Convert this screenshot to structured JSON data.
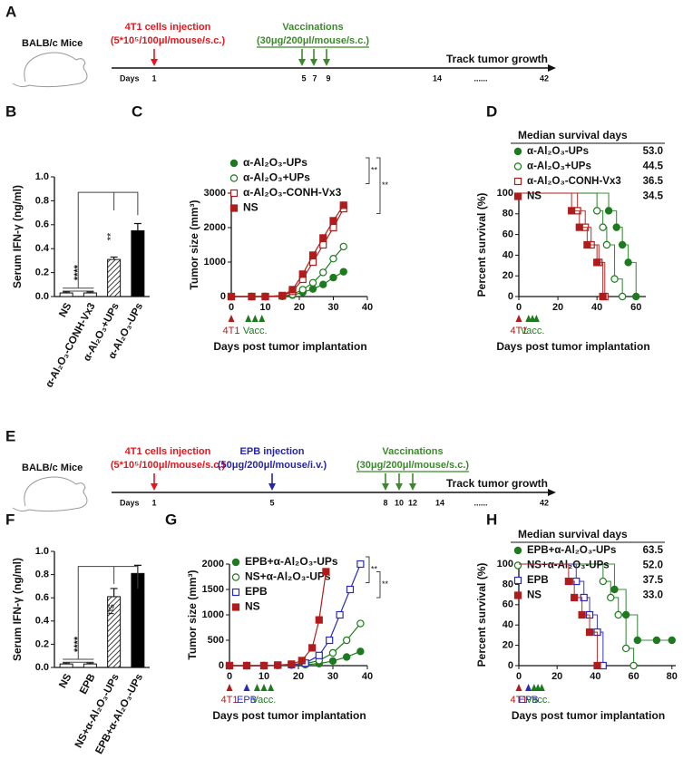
{
  "timelines": [
    {
      "panel": "A",
      "subject": "BALB/c Mice",
      "axis_label": "Days",
      "ticks": [
        1,
        5,
        7,
        9,
        14,
        "......",
        42
      ],
      "end_label": "Track tumor growth",
      "events": [
        {
          "label": "4T1 cells injection",
          "detail": "(5*10⁵/100μl/mouse/s.c.)",
          "color": "#e8141c"
        },
        {
          "label": "Vaccinations",
          "detail": "(30μg/200μl/mouse/s.c.)",
          "color": "#3a8a2a"
        }
      ]
    },
    {
      "panel": "E",
      "subject": "BALB/c Mice",
      "axis_label": "Days",
      "ticks": [
        1,
        5,
        8,
        10,
        12,
        14,
        "......",
        42
      ],
      "end_label": "Track tumor growth",
      "events": [
        {
          "label": "4T1 cells injection",
          "detail": "(5*10⁵/100μl/mouse/s.c.)",
          "color": "#e8141c"
        },
        {
          "label": "EPB injection",
          "detail": "(50μg/200μl/mouse/i.v.)",
          "color": "#2525a8"
        },
        {
          "label": "Vaccinations",
          "detail": "(30μg/200μl/mouse/s.c.)",
          "color": "#3a8a2a"
        }
      ]
    }
  ],
  "chart_data": [
    {
      "panel": "B",
      "type": "bar",
      "ylabel": "Serum IFN-γ (ng/ml)",
      "categories": [
        "NS",
        "α-Al₂O₃-CONH-Vx3",
        "α-Al₂O₃+UPs",
        "α-Al₂O₃-UPs"
      ],
      "values": [
        0.03,
        0.03,
        0.31,
        0.55
      ],
      "errors": [
        0.01,
        0.01,
        0.02,
        0.06
      ],
      "fills": [
        "white",
        "white",
        "hatch",
        "black"
      ],
      "ylim": [
        0,
        1
      ],
      "yticks": [
        {
          "value": 0,
          "label": "0.0"
        },
        0.2,
        0.4,
        0.6,
        0.8,
        {
          "value": 1,
          "label": "1.0"
        }
      ],
      "annotations": [
        "****",
        "**"
      ]
    },
    {
      "panel": "C",
      "type": "line",
      "xlabel": "Days post tumor implantation",
      "ylabel": "Tumor size (mm³)",
      "xlim": [
        0,
        40
      ],
      "xticks": [
        0,
        10,
        20,
        30,
        40
      ],
      "ylim": [
        0,
        3000
      ],
      "yticks": [
        0,
        1000,
        2000,
        3000
      ],
      "series": [
        {
          "name": "α-Al₂O₃-UPs",
          "color": "#1e7a1e",
          "marker": "circle",
          "filled": true,
          "x": [
            0,
            6,
            10,
            15,
            18,
            21,
            24,
            27,
            30,
            33
          ],
          "values": [
            0,
            0,
            0,
            5,
            40,
            120,
            220,
            350,
            550,
            720
          ]
        },
        {
          "name": "α-Al₂O₃+UPs",
          "color": "#1e7a1e",
          "marker": "circle",
          "filled": false,
          "x": [
            0,
            6,
            10,
            15,
            18,
            21,
            24,
            27,
            30,
            33
          ],
          "values": [
            0,
            0,
            0,
            10,
            60,
            200,
            400,
            700,
            1100,
            1450
          ]
        },
        {
          "name": "α-Al₂O₃-CONH-Vx3",
          "color": "#b01c1c",
          "marker": "square",
          "filled": false,
          "x": [
            0,
            6,
            10,
            15,
            18,
            21,
            24,
            27,
            30,
            33
          ],
          "values": [
            0,
            0,
            0,
            20,
            150,
            500,
            1000,
            1500,
            2000,
            2550
          ]
        },
        {
          "name": "NS",
          "color": "#b01c1c",
          "marker": "square",
          "filled": true,
          "x": [
            0,
            6,
            10,
            15,
            18,
            21,
            24,
            27,
            30,
            33
          ],
          "values": [
            0,
            0,
            0,
            30,
            200,
            650,
            1200,
            1700,
            2200,
            2650
          ]
        }
      ],
      "significance": [
        "**",
        "**"
      ],
      "events": [
        {
          "label": "4T1",
          "color": "#b01c1c",
          "days": [
            0
          ]
        },
        {
          "label": "Vacc.",
          "color": "#1e7a1e",
          "days": [
            5,
            7,
            9
          ]
        }
      ]
    },
    {
      "panel": "D",
      "type": "survival",
      "xlabel": "Days post  tumor implantation",
      "ylabel": "Percent survival (%)",
      "legend_title": "Median survival days",
      "xlim": [
        0,
        65
      ],
      "xticks": [
        0,
        20,
        40,
        60
      ],
      "ylim": [
        0,
        100
      ],
      "yticks": [
        0,
        20,
        40,
        60,
        80,
        100
      ],
      "series": [
        {
          "name": "α-Al₂O₃-UPs",
          "color": "#1e7a1e",
          "marker": "circle",
          "filled": true,
          "x": [
            0,
            46,
            50,
            53,
            56,
            60
          ],
          "values": [
            100,
            83,
            67,
            50,
            33,
            0
          ],
          "median": 53,
          "median_label": "53.0"
        },
        {
          "name": "α-Al₂O₃+UPs",
          "color": "#1e7a1e",
          "marker": "circle",
          "filled": false,
          "x": [
            0,
            40,
            43,
            45,
            49,
            53
          ],
          "values": [
            100,
            83,
            67,
            50,
            17,
            0
          ],
          "median": 44.5,
          "median_label": "44.5"
        },
        {
          "name": "α-Al₂O₃-CONH-Vx3",
          "color": "#b01c1c",
          "marker": "square",
          "filled": false,
          "x": [
            0,
            30,
            34,
            37,
            41,
            44
          ],
          "values": [
            100,
            83,
            67,
            50,
            33,
            0
          ],
          "median": 36.5,
          "median_label": "36.5"
        },
        {
          "name": "NS",
          "color": "#b01c1c",
          "marker": "square",
          "filled": true,
          "x": [
            0,
            27,
            31,
            35,
            40,
            43
          ],
          "values": [
            100,
            83,
            67,
            50,
            33,
            0
          ],
          "median": 34.5,
          "median_label": "34.5"
        }
      ],
      "events": [
        {
          "label": "4T1",
          "color": "#b01c1c",
          "days": [
            0
          ]
        },
        {
          "label": "Vacc.",
          "color": "#1e7a1e",
          "days": [
            5,
            7,
            9
          ]
        }
      ]
    },
    {
      "panel": "F",
      "type": "bar",
      "ylabel": "Serum IFN-γ (ng/ml)",
      "categories": [
        "NS",
        "EPB",
        "NS+α-Al₂O₃-UPs",
        "EPB+α-Al₂O₃-UPs"
      ],
      "values": [
        0.03,
        0.03,
        0.61,
        0.81
      ],
      "errors": [
        0.01,
        0.01,
        0.07,
        0.07
      ],
      "fills": [
        "white",
        "white",
        "hatch",
        "black"
      ],
      "ylim": [
        0,
        1
      ],
      "yticks": [
        {
          "value": 0,
          "label": "0.0"
        },
        0.2,
        0.4,
        0.6,
        0.8,
        {
          "value": 1,
          "label": "1.0"
        }
      ],
      "annotations": [
        "****",
        "ns"
      ]
    },
    {
      "panel": "G",
      "type": "line",
      "xlabel": "Days post tumor implantation",
      "ylabel": "Tumor size (mm³)",
      "xlim": [
        0,
        40
      ],
      "xticks": [
        0,
        10,
        20,
        30,
        40
      ],
      "ylim": [
        0,
        2000
      ],
      "yticks": [
        0,
        500,
        1000,
        1500,
        2000
      ],
      "series": [
        {
          "name": "EPB+α-Al₂O₃-UPs",
          "color": "#1e7a1e",
          "marker": "circle",
          "filled": true,
          "x": [
            0,
            5,
            10,
            14,
            18,
            22,
            26,
            30,
            34,
            38
          ],
          "values": [
            0,
            0,
            0,
            5,
            10,
            20,
            40,
            90,
            170,
            280
          ]
        },
        {
          "name": "NS+α-Al₂O₃-UPs",
          "color": "#1e7a1e",
          "marker": "circle",
          "filled": false,
          "x": [
            0,
            5,
            10,
            14,
            18,
            22,
            26,
            30,
            34,
            38
          ],
          "values": [
            0,
            0,
            0,
            5,
            15,
            40,
            100,
            250,
            500,
            830
          ]
        },
        {
          "name": "EPB",
          "color": "#2a2ab8",
          "marker": "square",
          "filled": false,
          "x": [
            0,
            5,
            10,
            14,
            18,
            22,
            26,
            29,
            32,
            35,
            38
          ],
          "values": [
            0,
            0,
            0,
            10,
            20,
            50,
            200,
            500,
            1000,
            1500,
            2000
          ]
        },
        {
          "name": "NS",
          "color": "#b01c1c",
          "marker": "square",
          "filled": true,
          "x": [
            0,
            5,
            10,
            14,
            18,
            21,
            24,
            26,
            28
          ],
          "values": [
            0,
            0,
            0,
            10,
            30,
            100,
            350,
            900,
            1850
          ]
        }
      ],
      "significance": [
        "**",
        "**"
      ],
      "events": [
        {
          "label": "4T1",
          "color": "#b01c1c",
          "days": [
            0
          ]
        },
        {
          "label": "EPB",
          "color": "#2a2ab8",
          "days": [
            5
          ]
        },
        {
          "label": "Vacc.",
          "color": "#1e7a1e",
          "days": [
            8,
            10,
            12
          ]
        }
      ]
    },
    {
      "panel": "H",
      "type": "survival",
      "xlabel": "Days post  tumor implantation",
      "ylabel": "Percent survival (%)",
      "legend_title": "Median survival days",
      "xlim": [
        0,
        82
      ],
      "xticks": [
        0,
        20,
        40,
        60,
        80
      ],
      "ylim": [
        0,
        100
      ],
      "yticks": [
        0,
        20,
        40,
        60,
        80,
        100
      ],
      "series": [
        {
          "name": "EPB+α-Al₂O₃-UPs",
          "color": "#1e7a1e",
          "marker": "circle",
          "filled": true,
          "x": [
            0,
            50,
            56,
            62,
            72,
            80
          ],
          "values": [
            100,
            75,
            50,
            25,
            25,
            25
          ],
          "median": 63.5,
          "median_label": "63.5"
        },
        {
          "name": "NS+α-Al₂O₃-UPs",
          "color": "#1e7a1e",
          "marker": "circle",
          "filled": false,
          "x": [
            0,
            44,
            48,
            52,
            56,
            60
          ],
          "values": [
            100,
            83,
            67,
            50,
            17,
            0
          ],
          "median": 52,
          "median_label": "52.0"
        },
        {
          "name": "EPB",
          "color": "#2a2ab8",
          "marker": "square",
          "filled": false,
          "x": [
            0,
            30,
            34,
            37,
            41,
            44
          ],
          "values": [
            100,
            83,
            67,
            50,
            33,
            0
          ],
          "median": 37.5,
          "median_label": "37.5"
        },
        {
          "name": "NS",
          "color": "#b01c1c",
          "marker": "square",
          "filled": true,
          "x": [
            0,
            26,
            29,
            33,
            37,
            41
          ],
          "values": [
            100,
            83,
            67,
            50,
            33,
            0
          ],
          "median": 33,
          "median_label": "33.0"
        }
      ],
      "events": [
        {
          "label": "4T1",
          "color": "#b01c1c",
          "days": [
            0
          ]
        },
        {
          "label": "EPB",
          "color": "#2a2ab8",
          "days": [
            5
          ]
        },
        {
          "label": "Vacc.",
          "color": "#1e7a1e",
          "days": [
            8,
            10,
            12
          ]
        }
      ]
    }
  ]
}
